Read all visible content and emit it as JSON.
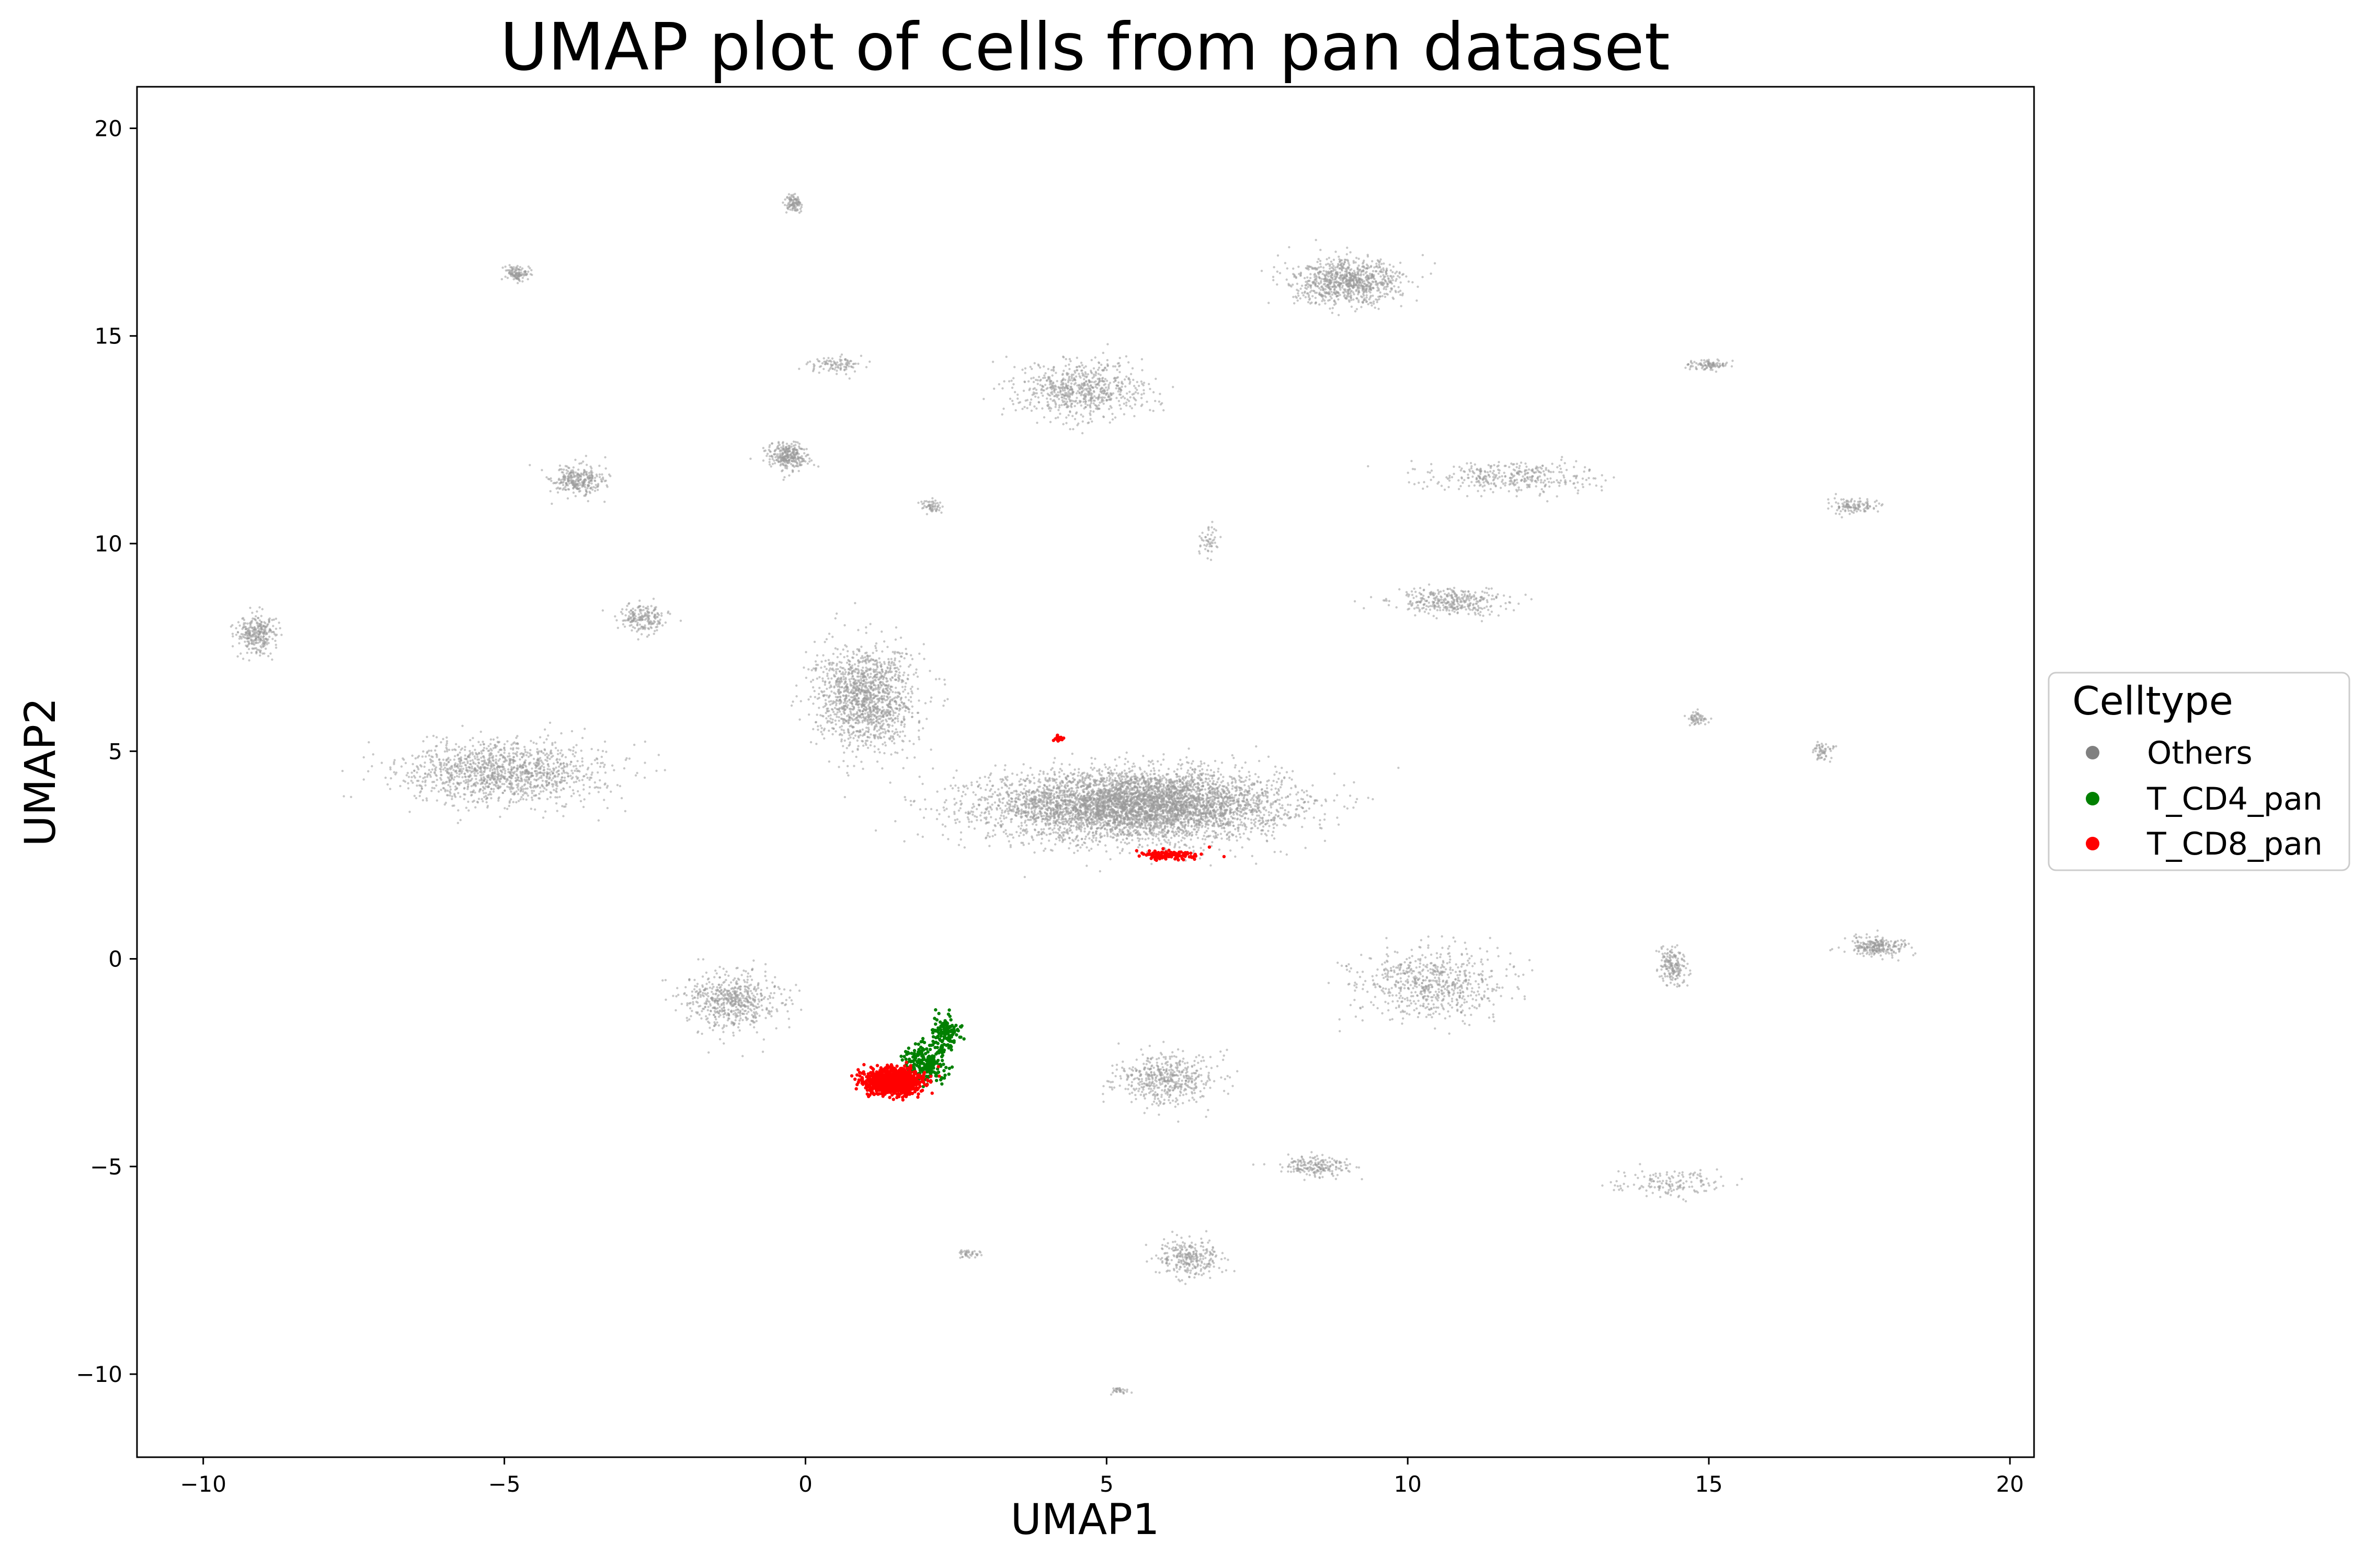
{
  "chart_data": {
    "type": "scatter",
    "title": "UMAP plot of cells from pan dataset",
    "xlabel": "UMAP1",
    "ylabel": "UMAP2",
    "xlim": [
      -11.1,
      20.4
    ],
    "ylim": [
      -12,
      21
    ],
    "xticks": [
      -10,
      -5,
      0,
      5,
      10,
      15,
      20
    ],
    "xtick_labels": [
      "−10",
      "−5",
      "0",
      "5",
      "10",
      "15",
      "20"
    ],
    "yticks": [
      -10,
      -5,
      0,
      5,
      10,
      15,
      20
    ],
    "ytick_labels": [
      "−10",
      "−5",
      "0",
      "5",
      "10",
      "15",
      "20"
    ],
    "grid": false,
    "legend": {
      "title": "Celltype",
      "placement": "center-right-outside",
      "entries": [
        "Others",
        "T_CD4_pan",
        "T_CD8_pan"
      ]
    },
    "series": [
      {
        "name": "Others",
        "color": "#999999",
        "clusters": [
          {
            "x": 5.5,
            "y": 3.7,
            "sx": 1.6,
            "sy": 0.55,
            "n": 5200
          },
          {
            "x": 1.0,
            "y": 6.3,
            "sx": 0.55,
            "sy": 0.8,
            "n": 1400
          },
          {
            "x": -5.0,
            "y": 4.5,
            "sx": 1.1,
            "sy": 0.5,
            "n": 1300
          },
          {
            "x": 9.0,
            "y": 16.3,
            "sx": 0.6,
            "sy": 0.35,
            "n": 900
          },
          {
            "x": 4.6,
            "y": 13.7,
            "sx": 0.7,
            "sy": 0.45,
            "n": 700
          },
          {
            "x": -1.2,
            "y": -1.0,
            "sx": 0.5,
            "sy": 0.45,
            "n": 600
          },
          {
            "x": 6.0,
            "y": -2.9,
            "sx": 0.55,
            "sy": 0.4,
            "n": 500
          },
          {
            "x": 10.7,
            "y": 8.6,
            "sx": 0.6,
            "sy": 0.2,
            "n": 350
          },
          {
            "x": 10.4,
            "y": -0.6,
            "sx": 0.8,
            "sy": 0.55,
            "n": 650
          },
          {
            "x": 11.8,
            "y": 11.6,
            "sx": 0.9,
            "sy": 0.25,
            "n": 350
          },
          {
            "x": -3.8,
            "y": 11.5,
            "sx": 0.3,
            "sy": 0.25,
            "n": 300
          },
          {
            "x": -0.3,
            "y": 12.1,
            "sx": 0.22,
            "sy": 0.22,
            "n": 300
          },
          {
            "x": -9.1,
            "y": 7.8,
            "sx": 0.22,
            "sy": 0.3,
            "n": 300
          },
          {
            "x": -2.7,
            "y": 8.2,
            "sx": 0.25,
            "sy": 0.25,
            "n": 200
          },
          {
            "x": 17.8,
            "y": 0.3,
            "sx": 0.35,
            "sy": 0.15,
            "n": 250
          },
          {
            "x": 14.4,
            "y": -0.2,
            "sx": 0.15,
            "sy": 0.3,
            "n": 180
          },
          {
            "x": 6.4,
            "y": -7.2,
            "sx": 0.35,
            "sy": 0.3,
            "n": 280
          },
          {
            "x": 8.5,
            "y": -5.0,
            "sx": 0.4,
            "sy": 0.15,
            "n": 200
          },
          {
            "x": 14.3,
            "y": -5.4,
            "sx": 0.6,
            "sy": 0.2,
            "n": 150
          },
          {
            "x": 17.4,
            "y": 10.9,
            "sx": 0.3,
            "sy": 0.12,
            "n": 120
          },
          {
            "x": 15.0,
            "y": 14.3,
            "sx": 0.2,
            "sy": 0.08,
            "n": 100
          },
          {
            "x": -4.8,
            "y": 16.5,
            "sx": 0.12,
            "sy": 0.12,
            "n": 120
          },
          {
            "x": -0.2,
            "y": 18.2,
            "sx": 0.1,
            "sy": 0.15,
            "n": 100
          },
          {
            "x": 0.5,
            "y": 14.3,
            "sx": 0.3,
            "sy": 0.12,
            "n": 100
          },
          {
            "x": 2.1,
            "y": 10.9,
            "sx": 0.12,
            "sy": 0.1,
            "n": 60
          },
          {
            "x": 6.7,
            "y": 10.1,
            "sx": 0.1,
            "sy": 0.25,
            "n": 50
          },
          {
            "x": 14.8,
            "y": 5.8,
            "sx": 0.12,
            "sy": 0.12,
            "n": 60
          },
          {
            "x": 16.9,
            "y": 5.0,
            "sx": 0.12,
            "sy": 0.15,
            "n": 60
          },
          {
            "x": 2.7,
            "y": -7.1,
            "sx": 0.15,
            "sy": 0.06,
            "n": 40
          },
          {
            "x": 5.2,
            "y": -10.4,
            "sx": 0.12,
            "sy": 0.06,
            "n": 30
          }
        ]
      },
      {
        "name": "T_CD4_pan",
        "color": "#008000",
        "clusters": [
          {
            "x": 2.0,
            "y": -2.5,
            "sx": 0.25,
            "sy": 0.35,
            "n": 250
          },
          {
            "x": 2.35,
            "y": -1.75,
            "sx": 0.15,
            "sy": 0.25,
            "n": 120
          }
        ]
      },
      {
        "name": "T_CD8_pan",
        "color": "#ff0000",
        "clusters": [
          {
            "x": 1.45,
            "y": -2.95,
            "sx": 0.3,
            "sy": 0.2,
            "n": 1100
          },
          {
            "x": 6.0,
            "y": 2.5,
            "sx": 0.3,
            "sy": 0.08,
            "n": 120
          },
          {
            "x": 4.2,
            "y": 5.3,
            "sx": 0.05,
            "sy": 0.05,
            "n": 20
          }
        ]
      }
    ]
  }
}
